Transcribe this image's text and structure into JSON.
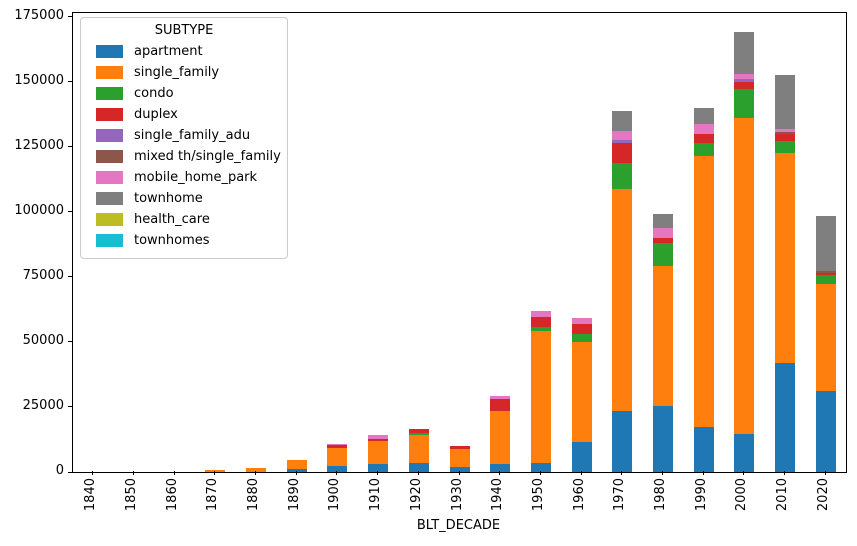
{
  "figure": {
    "background": "#ffffff"
  },
  "chart_data": {
    "type": "bar",
    "stacked": true,
    "title": "",
    "xlabel": "BLT_DECADE",
    "ylabel": "",
    "legend_title": "SUBTYPE",
    "legend_position": "upper left",
    "grid": false,
    "ylim": [
      0,
      176500
    ],
    "yticks": [
      0,
      25000,
      50000,
      75000,
      100000,
      125000,
      150000,
      175000
    ],
    "categories": [
      "1840",
      "1850",
      "1860",
      "1870",
      "1880",
      "1890",
      "1900",
      "1910",
      "1920",
      "1930",
      "1940",
      "1950",
      "1960",
      "1970",
      "1980",
      "1990",
      "2000",
      "2010",
      "2020"
    ],
    "series": [
      {
        "name": "apartment",
        "color": "#1f77b4",
        "values": [
          0,
          0,
          0,
          0,
          0,
          1100,
          2300,
          2900,
          3300,
          1800,
          2900,
          3500,
          11500,
          23500,
          25400,
          17400,
          14500,
          41800,
          31200
        ]
      },
      {
        "name": "single_family",
        "color": "#ff7f0e",
        "values": [
          0,
          0,
          0,
          700,
          1600,
          3400,
          7000,
          9200,
          10900,
          6900,
          20500,
          50800,
          38500,
          85200,
          53800,
          104100,
          121800,
          81000,
          41000
        ]
      },
      {
        "name": "condo",
        "color": "#2ca02c",
        "values": [
          0,
          0,
          0,
          0,
          0,
          0,
          0,
          0,
          700,
          0,
          0,
          1300,
          3000,
          10300,
          9000,
          5100,
          10900,
          4500,
          3500
        ]
      },
      {
        "name": "duplex",
        "color": "#d62728",
        "values": [
          0,
          0,
          0,
          0,
          0,
          0,
          1000,
          700,
          1700,
          1500,
          4500,
          3900,
          4100,
          7700,
          1900,
          3200,
          2900,
          2700,
          900
        ]
      },
      {
        "name": "single_family_adu",
        "color": "#9467bd",
        "values": [
          0,
          0,
          0,
          0,
          0,
          0,
          0,
          0,
          0,
          0,
          0,
          0,
          0,
          900,
          0,
          0,
          900,
          0,
          0
        ]
      },
      {
        "name": "mixed th/single_family",
        "color": "#8c564b",
        "values": [
          0,
          0,
          0,
          0,
          0,
          0,
          0,
          0,
          0,
          0,
          0,
          0,
          0,
          0,
          0,
          0,
          0,
          600,
          800
        ]
      },
      {
        "name": "mobile_home_park",
        "color": "#e377c2",
        "values": [
          0,
          0,
          0,
          0,
          0,
          0,
          600,
          1400,
          0,
          0,
          1300,
          2300,
          2300,
          3600,
          3900,
          3900,
          1900,
          1400,
          0
        ]
      },
      {
        "name": "townhome",
        "color": "#7f7f7f",
        "values": [
          0,
          0,
          0,
          0,
          0,
          0,
          0,
          0,
          0,
          0,
          0,
          0,
          0,
          7700,
          5100,
          6200,
          16300,
          20800,
          21100
        ]
      },
      {
        "name": "health_care",
        "color": "#bcbd22",
        "values": [
          0,
          0,
          0,
          0,
          0,
          0,
          0,
          0,
          0,
          0,
          0,
          0,
          0,
          0,
          0,
          0,
          0,
          0,
          0
        ]
      },
      {
        "name": "townhomes",
        "color": "#17becf",
        "values": [
          0,
          0,
          0,
          0,
          0,
          0,
          0,
          0,
          0,
          0,
          0,
          0,
          0,
          0,
          0,
          0,
          0,
          0,
          0
        ]
      }
    ]
  }
}
